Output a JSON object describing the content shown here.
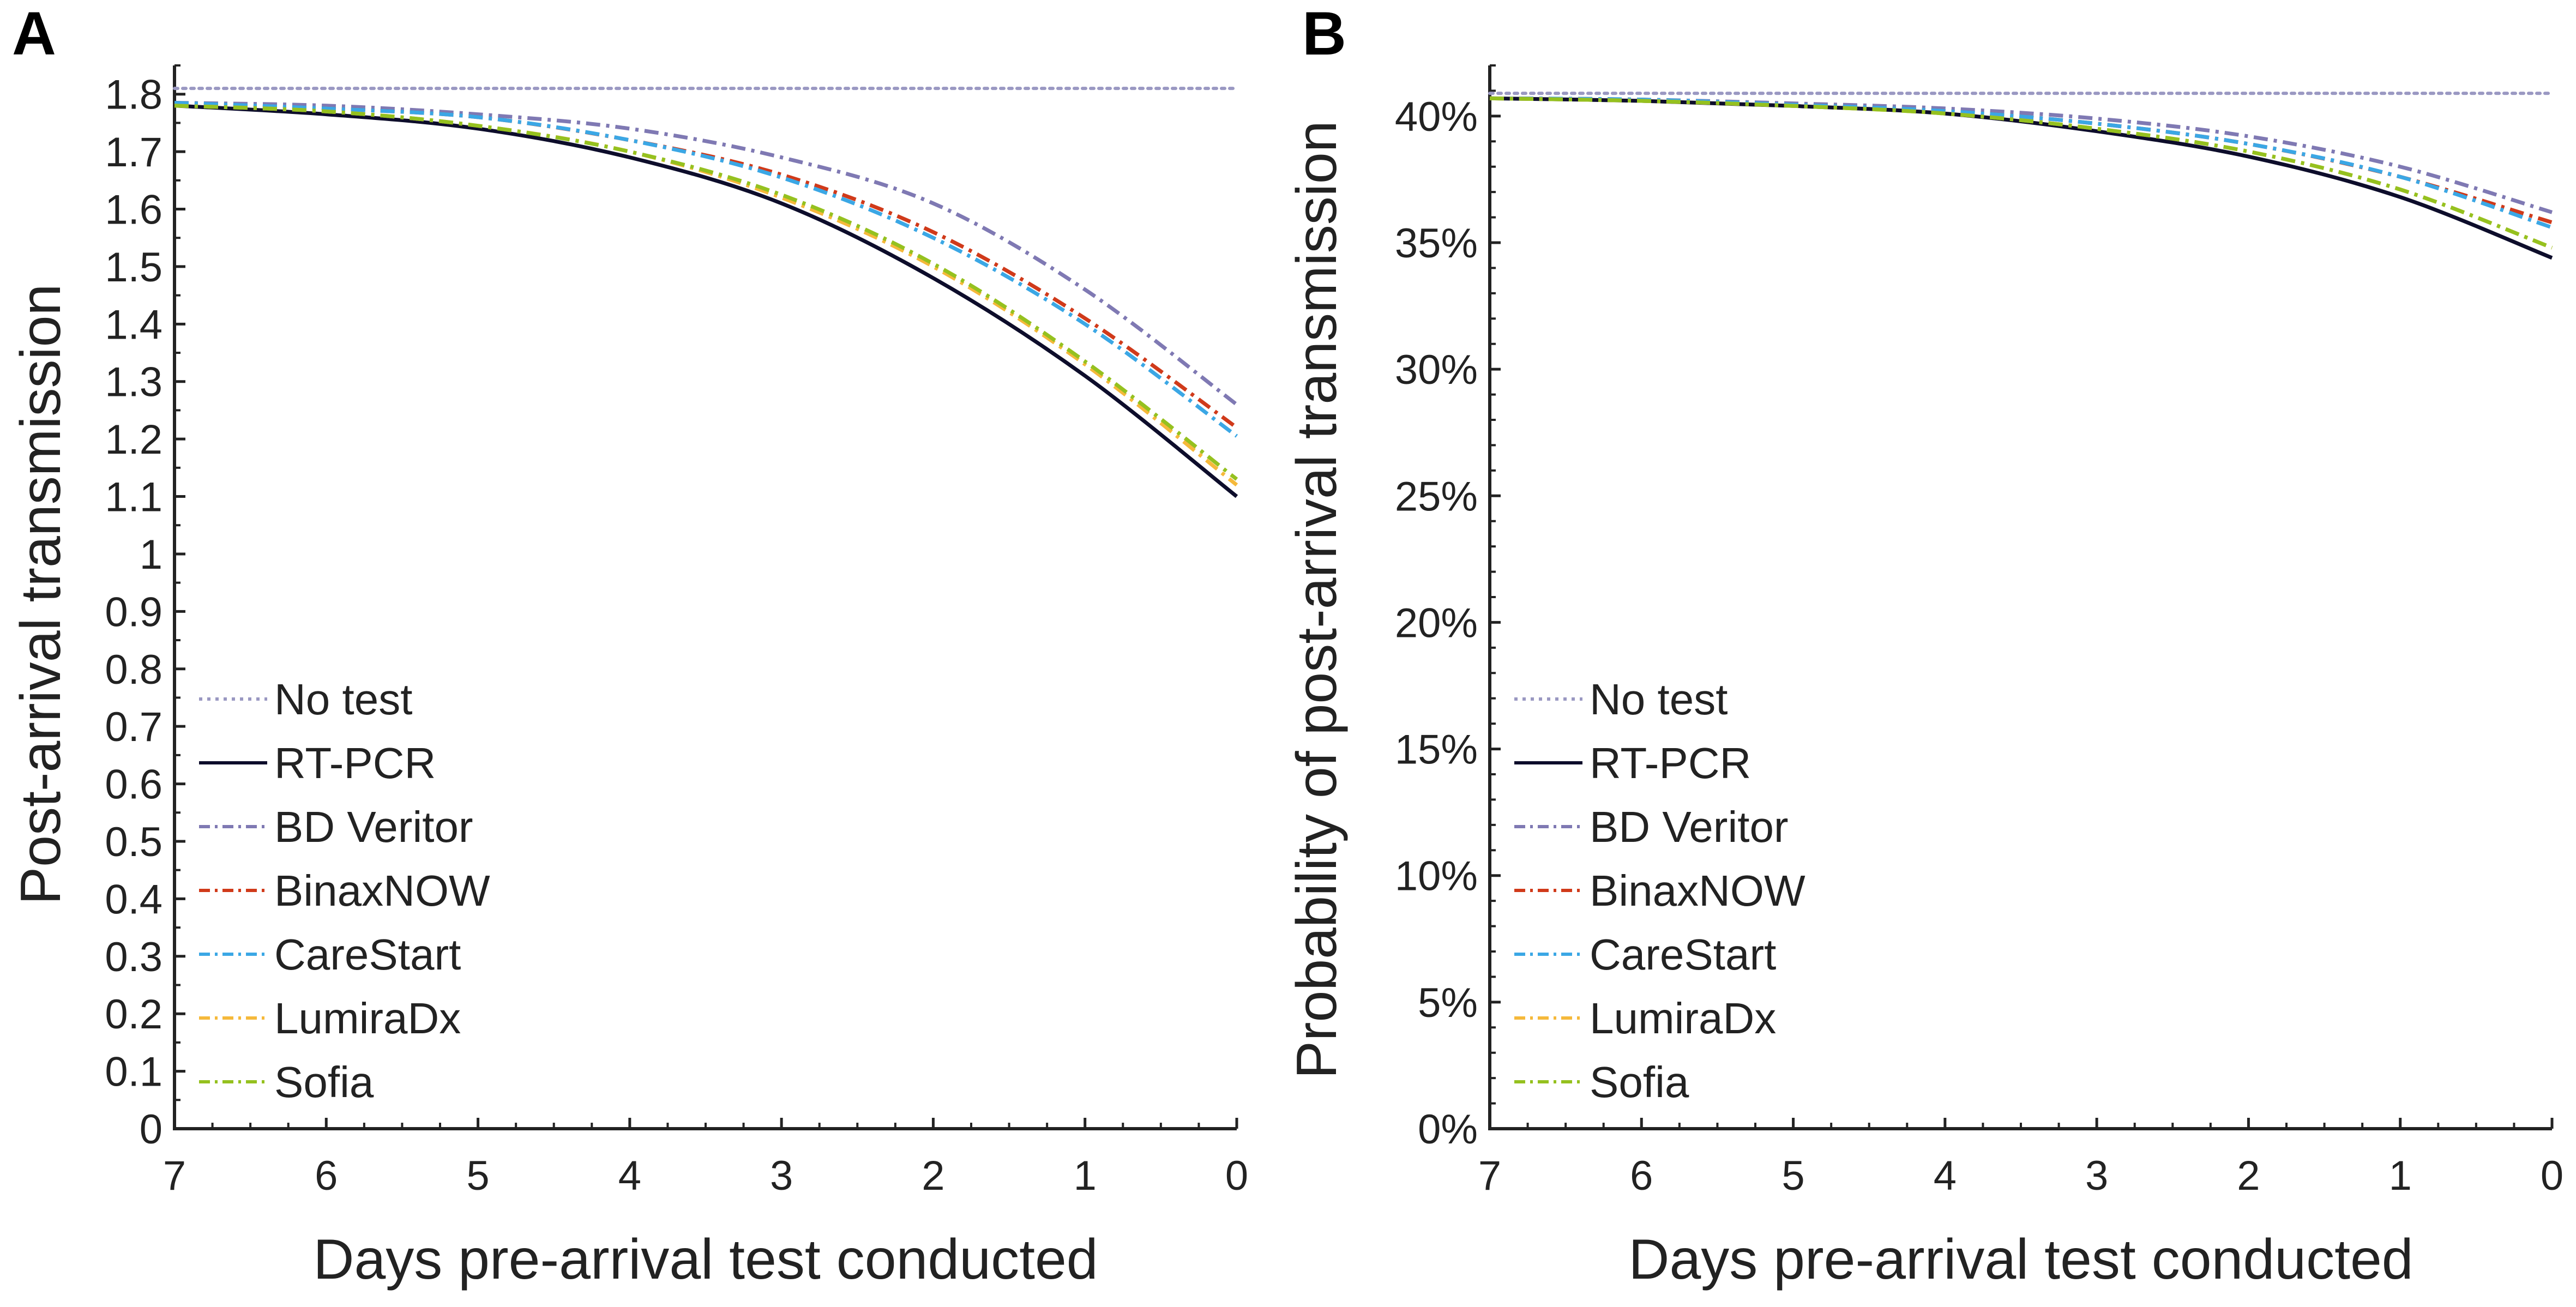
{
  "chart_data": [
    {
      "panel": "A",
      "type": "line",
      "title": "",
      "xlabel": "Days pre-arrival test conducted",
      "ylabel": "Post-arrival transmission",
      "xlim": [
        7,
        0
      ],
      "x_reversed": true,
      "ylim": [
        0,
        1.85
      ],
      "x_ticks": [
        "7",
        "6",
        "5",
        "4",
        "3",
        "2",
        "1",
        "0"
      ],
      "y_ticks": [
        "0",
        "0.1",
        "0.2",
        "0.3",
        "0.4",
        "0.5",
        "0.6",
        "0.7",
        "0.8",
        "0.9",
        "1",
        "1.1",
        "1.2",
        "1.3",
        "1.4",
        "1.5",
        "1.6",
        "1.7",
        "1.8"
      ],
      "grid": false,
      "legend_position": "bottom-left",
      "x": [
        7,
        6,
        5,
        4,
        3,
        2,
        1,
        0
      ],
      "series": [
        {
          "name": "No test",
          "color": "#9a98c2",
          "dash": "dotted",
          "values": [
            1.81,
            1.81,
            1.81,
            1.81,
            1.81,
            1.81,
            1.81,
            1.81
          ]
        },
        {
          "name": "RT-PCR",
          "color": "#0d0d2b",
          "dash": "solid",
          "values": [
            1.78,
            1.765,
            1.74,
            1.69,
            1.61,
            1.48,
            1.31,
            1.1
          ]
        },
        {
          "name": "BD Veritor",
          "color": "#7f79b3",
          "dash": "dashdot",
          "values": [
            1.785,
            1.78,
            1.765,
            1.74,
            1.69,
            1.61,
            1.46,
            1.26
          ]
        },
        {
          "name": "BinaxNOW",
          "color": "#d03a1a",
          "dash": "dashdot",
          "values": [
            1.785,
            1.775,
            1.76,
            1.72,
            1.66,
            1.56,
            1.41,
            1.22
          ]
        },
        {
          "name": "CareStart",
          "color": "#3ba7e5",
          "dash": "dashdot",
          "values": [
            1.785,
            1.775,
            1.76,
            1.72,
            1.655,
            1.55,
            1.4,
            1.205
          ]
        },
        {
          "name": "LumiraDx",
          "color": "#f5b93b",
          "dash": "dashdot",
          "values": [
            1.78,
            1.77,
            1.745,
            1.7,
            1.62,
            1.5,
            1.33,
            1.12
          ]
        },
        {
          "name": "Sofia",
          "color": "#95c11f",
          "dash": "dashdot",
          "values": [
            1.78,
            1.77,
            1.745,
            1.7,
            1.625,
            1.505,
            1.335,
            1.13
          ]
        }
      ]
    },
    {
      "panel": "B",
      "type": "line",
      "title": "",
      "xlabel": "Days pre-arrival test conducted",
      "ylabel": "Probability of post-arrival transmission",
      "xlim": [
        7,
        0
      ],
      "x_reversed": true,
      "ylim": [
        0,
        42
      ],
      "x_ticks": [
        "7",
        "6",
        "5",
        "4",
        "3",
        "2",
        "1",
        "0"
      ],
      "y_ticks": [
        "0%",
        "5%",
        "10%",
        "15%",
        "20%",
        "25%",
        "30%",
        "35%",
        "40%"
      ],
      "grid": false,
      "legend_position": "bottom-left",
      "x": [
        7,
        6,
        5,
        4,
        3,
        2,
        1,
        0
      ],
      "series": [
        {
          "name": "No test",
          "color": "#9a98c2",
          "dash": "dotted",
          "values": [
            40.9,
            40.9,
            40.9,
            40.9,
            40.9,
            40.9,
            40.9,
            40.9
          ]
        },
        {
          "name": "RT-PCR",
          "color": "#0d0d2b",
          "dash": "solid",
          "values": [
            40.7,
            40.6,
            40.4,
            40.1,
            39.4,
            38.4,
            36.8,
            34.4
          ]
        },
        {
          "name": "BD Veritor",
          "color": "#7f79b3",
          "dash": "dashdot",
          "values": [
            40.7,
            40.65,
            40.5,
            40.3,
            39.9,
            39.2,
            38.0,
            36.2
          ]
        },
        {
          "name": "BinaxNOW",
          "color": "#d03a1a",
          "dash": "dashdot",
          "values": [
            40.7,
            40.65,
            40.45,
            40.2,
            39.7,
            38.9,
            37.6,
            35.8
          ]
        },
        {
          "name": "CareStart",
          "color": "#3ba7e5",
          "dash": "dashdot",
          "values": [
            40.7,
            40.65,
            40.45,
            40.2,
            39.7,
            38.9,
            37.6,
            35.6
          ]
        },
        {
          "name": "LumiraDx",
          "color": "#f5b93b",
          "dash": "dashdot",
          "values": [
            40.7,
            40.6,
            40.4,
            40.1,
            39.5,
            38.6,
            37.1,
            34.8
          ]
        },
        {
          "name": "Sofia",
          "color": "#95c11f",
          "dash": "dashdot",
          "values": [
            40.7,
            40.6,
            40.4,
            40.1,
            39.5,
            38.6,
            37.1,
            34.8
          ]
        }
      ]
    }
  ]
}
